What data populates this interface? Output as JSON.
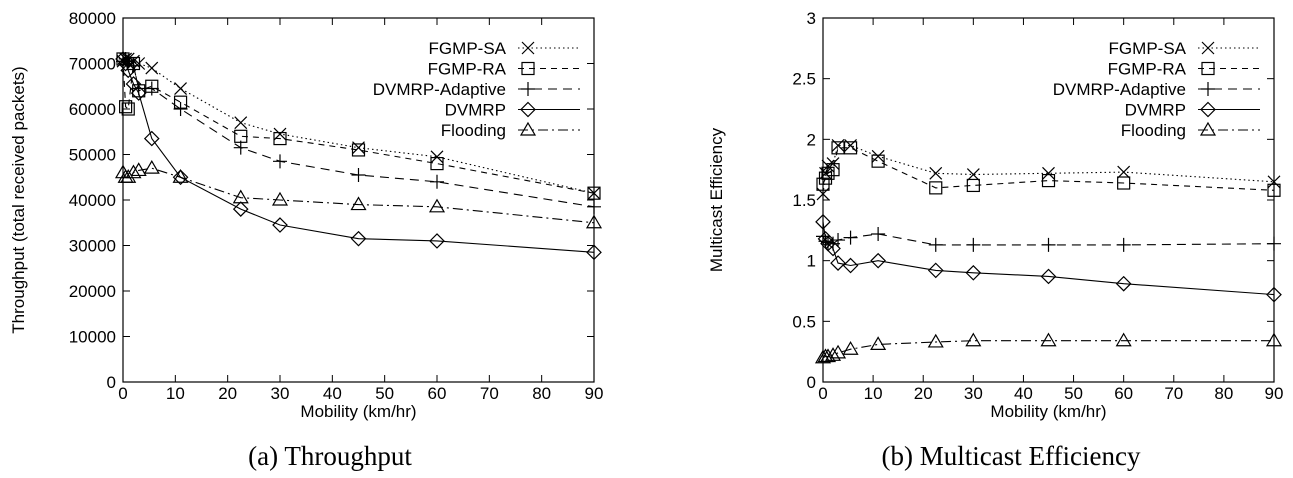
{
  "chart_data": [
    {
      "type": "line",
      "caption": "(a) Throughput",
      "xlabel": "Mobility (km/hr)",
      "ylabel": "Throughput (total received packets)",
      "xlim": [
        0,
        90
      ],
      "ylim": [
        0,
        80000
      ],
      "xticks": [
        0,
        10,
        20,
        30,
        40,
        50,
        60,
        70,
        80,
        90
      ],
      "yticks": [
        0,
        10000,
        20000,
        30000,
        40000,
        50000,
        60000,
        70000,
        80000
      ],
      "legend_position": "top-right",
      "grid": false,
      "series": [
        {
          "name": "FGMP-SA",
          "marker": "x",
          "dash": "dotted",
          "x": [
            0,
            0.5,
            1,
            2,
            3,
            5.5,
            11,
            22.5,
            30,
            45,
            60,
            90
          ],
          "y": [
            70500,
            71000,
            71000,
            70500,
            70000,
            69000,
            64500,
            57000,
            54500,
            51500,
            49500,
            41500
          ]
        },
        {
          "name": "FGMP-RA",
          "marker": "square",
          "dash": "dashed-short",
          "x": [
            0,
            0.5,
            1,
            2,
            3,
            5.5,
            11,
            22.5,
            30,
            45,
            60,
            90
          ],
          "y": [
            71000,
            60500,
            60000,
            70000,
            64000,
            65000,
            61500,
            54000,
            53500,
            51000,
            48000,
            41500
          ]
        },
        {
          "name": "DVMRP-Adaptive",
          "marker": "plus",
          "dash": "dashed",
          "x": [
            0,
            0.5,
            1,
            2,
            3,
            5.5,
            11,
            22.5,
            30,
            45,
            60,
            90
          ],
          "y": [
            70500,
            71000,
            70500,
            69500,
            64500,
            64500,
            60000,
            51500,
            48500,
            45500,
            44000,
            38500
          ]
        },
        {
          "name": "DVMRP",
          "marker": "diamond",
          "dash": "solid",
          "x": [
            0,
            0.5,
            1,
            2,
            3,
            5.5,
            11,
            22.5,
            30,
            45,
            60,
            90
          ],
          "y": [
            71000,
            70000,
            68500,
            65500,
            63500,
            53500,
            45000,
            38000,
            34500,
            31500,
            31000,
            28500
          ]
        },
        {
          "name": "Flooding",
          "marker": "triangle",
          "dash": "dashdot",
          "x": [
            0,
            0.5,
            1,
            2,
            3,
            5.5,
            11,
            22.5,
            30,
            45,
            60,
            90
          ],
          "y": [
            46000,
            45000,
            45000,
            46000,
            46500,
            47000,
            45000,
            40500,
            40000,
            39000,
            38500,
            35000
          ]
        }
      ]
    },
    {
      "type": "line",
      "caption": "(b) Multicast Efficiency",
      "xlabel": "Mobility (km/hr)",
      "ylabel": "Multicast Efficiency",
      "xlim": [
        0,
        90
      ],
      "ylim": [
        0,
        3
      ],
      "xticks": [
        0,
        10,
        20,
        30,
        40,
        50,
        60,
        70,
        80,
        90
      ],
      "yticks": [
        0,
        0.5,
        1,
        1.5,
        2,
        2.5,
        3
      ],
      "legend_position": "top-right",
      "grid": false,
      "series": [
        {
          "name": "FGMP-SA",
          "marker": "x",
          "dash": "dotted",
          "x": [
            0,
            0.5,
            1,
            2,
            3,
            5.5,
            11,
            22.5,
            30,
            45,
            60,
            90
          ],
          "y": [
            1.55,
            1.72,
            1.78,
            1.8,
            1.95,
            1.95,
            1.86,
            1.72,
            1.71,
            1.72,
            1.73,
            1.65
          ]
        },
        {
          "name": "FGMP-RA",
          "marker": "square",
          "dash": "dashed-short",
          "x": [
            0,
            0.5,
            1,
            2,
            3,
            5.5,
            11,
            22.5,
            30,
            45,
            60,
            90
          ],
          "y": [
            1.63,
            1.68,
            1.72,
            1.75,
            1.93,
            1.93,
            1.82,
            1.6,
            1.62,
            1.66,
            1.64,
            1.58
          ]
        },
        {
          "name": "DVMRP-Adaptive",
          "marker": "plus",
          "dash": "dashed",
          "x": [
            0,
            0.5,
            1,
            2,
            3,
            5.5,
            11,
            22.5,
            30,
            45,
            60,
            90
          ],
          "y": [
            1.2,
            1.16,
            1.15,
            1.14,
            1.17,
            1.19,
            1.22,
            1.13,
            1.13,
            1.13,
            1.13,
            1.14
          ]
        },
        {
          "name": "DVMRP",
          "marker": "diamond",
          "dash": "solid",
          "x": [
            0,
            0.5,
            1,
            2,
            3,
            5.5,
            11,
            22.5,
            30,
            45,
            60,
            90
          ],
          "y": [
            1.32,
            1.18,
            1.14,
            1.1,
            0.98,
            0.96,
            1.0,
            0.92,
            0.9,
            0.87,
            0.81,
            0.72
          ]
        },
        {
          "name": "Flooding",
          "marker": "triangle",
          "dash": "dashdot",
          "x": [
            0,
            0.5,
            1,
            2,
            3,
            5.5,
            11,
            22.5,
            30,
            45,
            60,
            90
          ],
          "y": [
            0.2,
            0.21,
            0.21,
            0.22,
            0.24,
            0.27,
            0.31,
            0.33,
            0.34,
            0.34,
            0.34,
            0.34
          ]
        }
      ]
    }
  ]
}
